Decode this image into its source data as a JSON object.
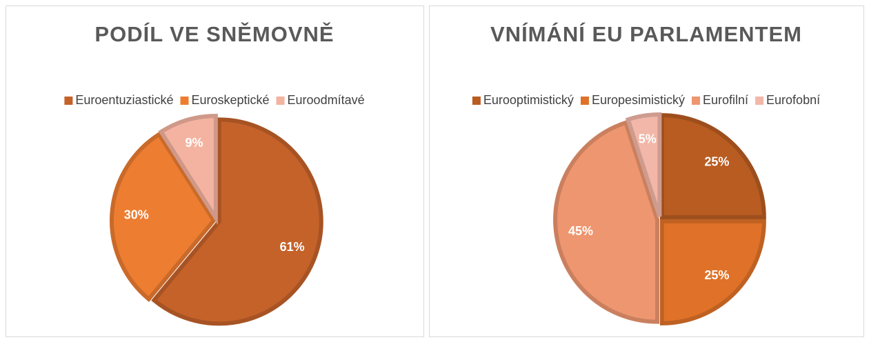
{
  "chart_data": [
    {
      "type": "pie",
      "title": "PODÍL VE SNĚMOVNĚ",
      "categories": [
        "Euroentuziastické",
        "Euroskeptické",
        "Euroodmítavé"
      ],
      "values": [
        61,
        30,
        9
      ],
      "value_labels": [
        "61%",
        "30%",
        "9%"
      ],
      "colors": [
        "#c4622a",
        "#ed7d31",
        "#f4b3a0"
      ],
      "legend": "top"
    },
    {
      "type": "pie",
      "title": "VNÍMÁNÍ EU PARLAMENTEM",
      "categories": [
        "Eurooptimistický",
        "Europesimistický",
        "Eurofilní",
        "Eurofobní"
      ],
      "values": [
        25,
        25,
        45,
        5
      ],
      "value_labels": [
        "25%",
        "25%",
        "45%",
        "5%"
      ],
      "colors": [
        "#b95c22",
        "#df7228",
        "#ee9670",
        "#f2b7a8"
      ],
      "legend": "top"
    }
  ]
}
